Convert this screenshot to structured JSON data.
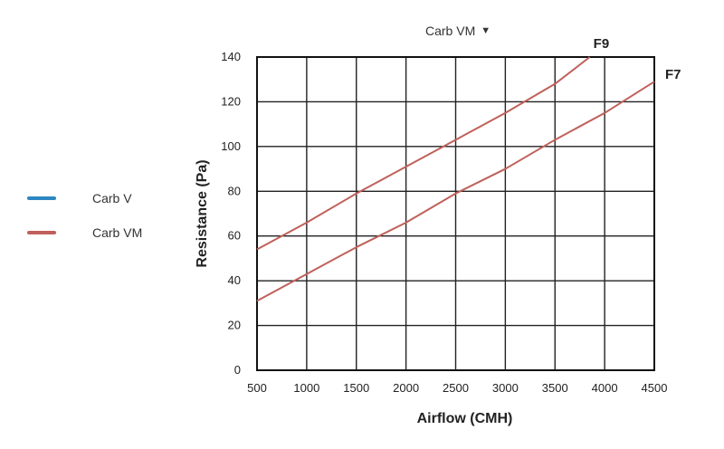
{
  "selector": {
    "value": "Carb VM",
    "icon": "triangle-down-icon"
  },
  "legend": [
    {
      "label": "Carb V",
      "color": "#2E86C1"
    },
    {
      "label": "Carb VM",
      "color": "#C0605A"
    }
  ],
  "chart_data": {
    "type": "line",
    "xlabel": "Airflow (CMH)",
    "ylabel": "Resistance (Pa)",
    "xlim": [
      500,
      4500
    ],
    "ylim": [
      0,
      140
    ],
    "x_ticks": [
      500,
      1000,
      1500,
      2000,
      2500,
      3000,
      3500,
      4000,
      4500
    ],
    "y_ticks": [
      0,
      20,
      40,
      60,
      80,
      100,
      120,
      140
    ],
    "grid": true,
    "line_color": "#C0605A",
    "series": [
      {
        "name": "F9",
        "x": [
          500,
          1000,
          1500,
          2000,
          2500,
          3000,
          3500,
          3850
        ],
        "y": [
          54,
          66,
          79,
          91,
          103,
          115,
          128,
          140
        ]
      },
      {
        "name": "F7",
        "x": [
          500,
          1000,
          1500,
          2000,
          2500,
          3000,
          3500,
          4000,
          4500
        ],
        "y": [
          31,
          43,
          55,
          66,
          79,
          90,
          103,
          115,
          129
        ]
      }
    ]
  }
}
